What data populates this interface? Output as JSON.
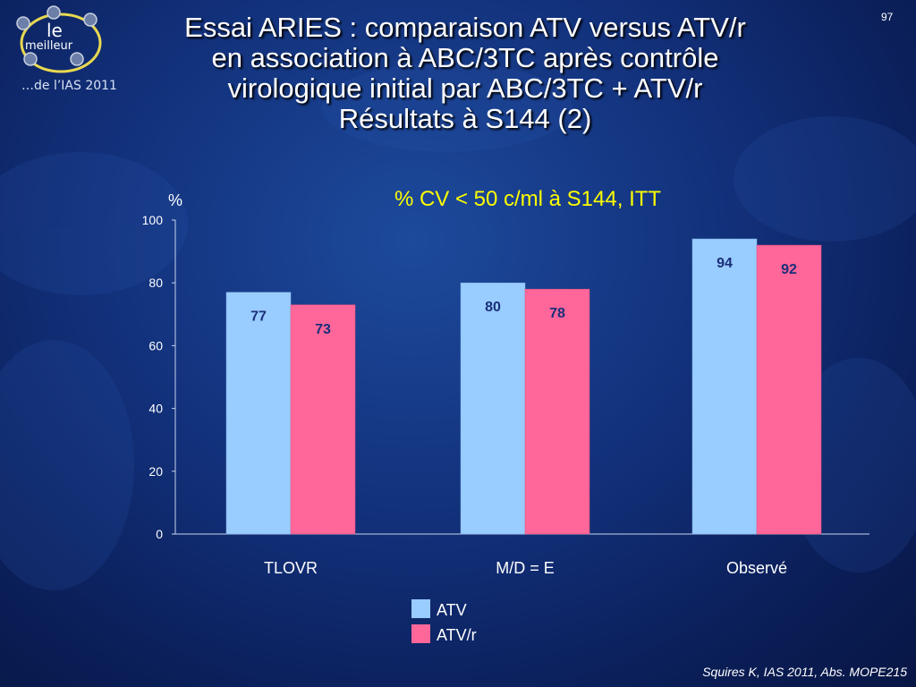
{
  "slide": {
    "number": "97",
    "title_lines": [
      "Essai ARIES : comparaison ATV versus ATV/r",
      "en association à ABC/3TC après contrôle",
      "virologique initial par ABC/3TC + ATV/r",
      "Résultats à S144 (2)"
    ],
    "citation": "Squires K, IAS 2011, Abs. MOPE215"
  },
  "logo": {
    "word1": "le",
    "word2": "meilleur",
    "subtitle": "…de l’IAS 2011"
  },
  "colors": {
    "atv": "#99ccff",
    "atvr": "#ff6699",
    "label_atv": "#1a2f7a",
    "label_atvr": "#1a2f7a"
  },
  "chart_data": {
    "type": "bar",
    "title": "% CV < 50 c/ml à S144, ITT",
    "ylabel": "%",
    "ylim": [
      0,
      100
    ],
    "yticks": [
      0,
      20,
      40,
      60,
      80,
      100
    ],
    "categories": [
      "TLOVR",
      "M/D = E",
      "Observé"
    ],
    "series": [
      {
        "name": "ATV",
        "values": [
          77,
          80,
          94
        ]
      },
      {
        "name": "ATV/r",
        "values": [
          73,
          78,
          92
        ]
      }
    ],
    "legend": "bottom-center"
  }
}
